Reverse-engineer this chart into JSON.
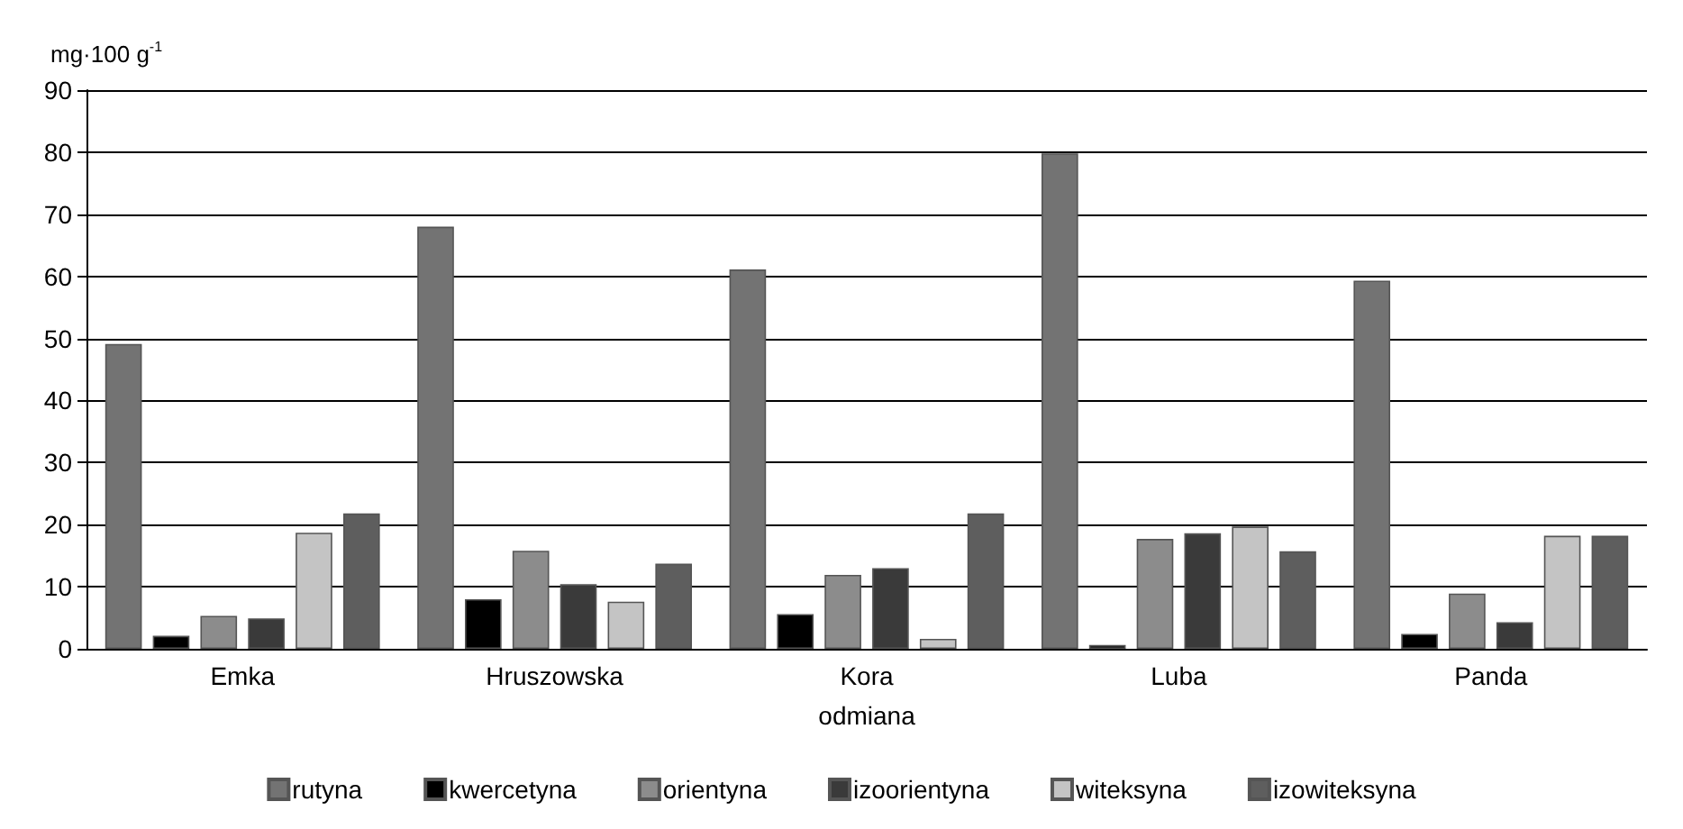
{
  "chart_data": {
    "type": "bar",
    "xlabel": "odmiana",
    "ylabel": "mg·100 g$^{-1}$",
    "categories": [
      "Emka",
      "Hruszowska",
      "Kora",
      "Luba",
      "Panda"
    ],
    "series": [
      {
        "name": "rutyna",
        "color": "#737373",
        "values": [
          49.1,
          68.0,
          61.1,
          79.8,
          59.3
        ]
      },
      {
        "name": "kwercetyna",
        "color": "#000000",
        "values": [
          2.1,
          8.0,
          5.6,
          0.6,
          2.4
        ]
      },
      {
        "name": "orientyna",
        "color": "#8c8c8c",
        "values": [
          5.3,
          15.8,
          11.9,
          17.7,
          8.9
        ]
      },
      {
        "name": "izoorientyna",
        "color": "#3a3a3a",
        "values": [
          4.9,
          10.4,
          13.0,
          18.6,
          4.3
        ]
      },
      {
        "name": "witeksyna",
        "color": "#c4c4c4",
        "values": [
          18.7,
          7.6,
          1.6,
          19.7,
          18.2
        ]
      },
      {
        "name": "izowiteksyna",
        "color": "#5e5e5e",
        "values": [
          21.8,
          13.7,
          21.8,
          15.7,
          18.2
        ]
      }
    ],
    "ylim": [
      0,
      90
    ],
    "yticks": [
      0,
      10,
      20,
      30,
      40,
      50,
      60,
      70,
      80,
      90
    ],
    "grid": "y",
    "legend": "bottom"
  }
}
